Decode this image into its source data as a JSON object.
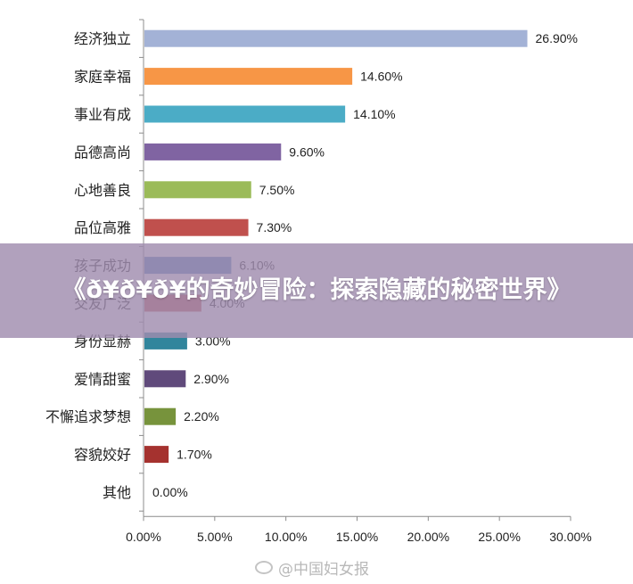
{
  "banner": {
    "title": "《ð¥ð¥ð¥的奇妙冒险：探索隐藏的秘密世界》"
  },
  "watermark": {
    "icon": "weibo-icon",
    "text": "@中国妇女报"
  },
  "chart_data": {
    "type": "bar",
    "orientation": "horizontal",
    "categories": [
      "经济独立",
      "家庭幸福",
      "事业有成",
      "品德高尚",
      "心地善良",
      "品位高雅",
      "孩子成功",
      "交友广泛",
      "身份显赫",
      "爱情甜蜜",
      "不懈追求梦想",
      "容貌姣好",
      "其他"
    ],
    "values": [
      26.9,
      14.6,
      14.1,
      9.6,
      7.5,
      7.3,
      6.1,
      4.0,
      3.0,
      2.9,
      2.2,
      1.7,
      0.0
    ],
    "value_labels": [
      "26.90%",
      "14.60%",
      "14.10%",
      "9.60%",
      "7.50%",
      "7.30%",
      "6.10%",
      "4.00%",
      "3.00%",
      "2.90%",
      "2.20%",
      "1.70%",
      "0.00%"
    ],
    "colors": [
      "#a3b2d6",
      "#f79646",
      "#4bacc6",
      "#8064a2",
      "#9bbb59",
      "#c0504d",
      "#4f81bd",
      "#c0504d",
      "#31859c",
      "#604a7b",
      "#77933c",
      "#a5322f",
      "#4f81bd"
    ],
    "xlim": [
      0,
      30
    ],
    "xticks": [
      "0.00%",
      "5.00%",
      "10.00%",
      "15.00%",
      "20.00%",
      "25.00%",
      "30.00%"
    ],
    "title": "",
    "xlabel": "",
    "ylabel": "",
    "grid": false
  }
}
